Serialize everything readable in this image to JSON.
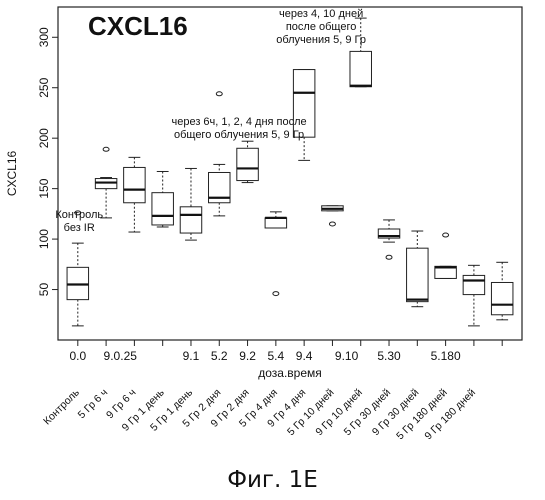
{
  "caption": "Фиг. 1E",
  "chart_data": {
    "type": "boxplot",
    "title": "CXCL16",
    "ylabel": "CXCL16",
    "xlabel": "доза.время",
    "ylim": [
      0,
      330
    ],
    "yticks": [
      50,
      100,
      150,
      200,
      250,
      300
    ],
    "grid": false,
    "group_labels": [
      {
        "text": "0.0",
        "position": 1
      },
      {
        "text": "9.0.25",
        "position": 2.5
      },
      {
        "text": "9.1",
        "position": 5
      },
      {
        "text": "5.2",
        "position": 6
      },
      {
        "text": "9.2",
        "position": 7
      },
      {
        "text": "5.4",
        "position": 8
      },
      {
        "text": "9.4",
        "position": 9
      },
      {
        "text": "9.10",
        "position": 10.5
      },
      {
        "text": "5.30",
        "position": 12
      },
      {
        "text": "5.180",
        "position": 14
      }
    ],
    "categories": [
      "Контроль",
      "5 Гр 6 ч",
      "9 Гр 6 ч",
      "9 Гр 1 день",
      "5 Гр 1 день",
      "5 Гр 2 дня",
      "9 Гр 2 дня",
      "5 Гр 4 дня",
      "9 Гр 4 дня",
      "5 Гр 10 дней",
      "9 Гр 10 дней",
      "5 Гр 30 дней",
      "9 Гр 30 дней",
      "5 Гр 180 дней",
      "9 Гр 180 дней"
    ],
    "boxes": [
      {
        "min": 14,
        "q1": 40,
        "median": 55,
        "q3": 72,
        "max": 96,
        "outliers": [
          126
        ]
      },
      {
        "min": 121,
        "q1": 150,
        "median": 156,
        "q3": 160,
        "max": 161,
        "outliers": [
          189
        ]
      },
      {
        "min": 107,
        "q1": 136,
        "median": 149,
        "q3": 171,
        "max": 181,
        "outliers": []
      },
      {
        "min": 112,
        "q1": 114,
        "median": 123,
        "q3": 146,
        "max": 167,
        "outliers": []
      },
      {
        "min": 99,
        "q1": 106,
        "median": 124,
        "q3": 132,
        "max": 170,
        "outliers": []
      },
      {
        "min": 123,
        "q1": 136,
        "median": 141,
        "q3": 166,
        "max": 174,
        "outliers": [
          244
        ]
      },
      {
        "min": 156,
        "q1": 158,
        "median": 170,
        "q3": 190,
        "max": 197,
        "outliers": []
      },
      {
        "min": 111,
        "q1": 111,
        "median": 121,
        "q3": 121,
        "max": 127,
        "outliers": [
          46
        ]
      },
      {
        "min": 178,
        "q1": 201,
        "median": 245,
        "q3": 268,
        "max": 268,
        "outliers": []
      },
      {
        "min": 128,
        "q1": 128,
        "median": 130,
        "q3": 133,
        "max": 133,
        "outliers": [
          115
        ]
      },
      {
        "min": 251,
        "q1": 251,
        "median": 252,
        "q3": 286,
        "max": 319,
        "outliers": []
      },
      {
        "min": 97,
        "q1": 101,
        "median": 103,
        "q3": 110,
        "max": 119,
        "outliers": [
          82
        ]
      },
      {
        "min": 33,
        "q1": 38,
        "median": 40,
        "q3": 91,
        "max": 108,
        "outliers": []
      },
      {
        "min": 61,
        "q1": 61,
        "median": 72,
        "q3": 73,
        "max": 73,
        "outliers": [
          104
        ]
      },
      {
        "min": 14,
        "q1": 45,
        "median": 59,
        "q3": 64,
        "max": 74,
        "outliers": []
      },
      {
        "min": 20,
        "q1": 25,
        "median": 35,
        "q3": 57,
        "max": 77,
        "outliers": []
      }
    ],
    "annotations": [
      {
        "lines": [
          "Контроль",
          "без IR"
        ],
        "x": 1.05,
        "y": 121
      },
      {
        "lines": [
          "через 6ч, 1, 2, 4 дня после",
          "общего облучения 5, 9 Гр"
        ],
        "x": 6.7,
        "y": 213
      },
      {
        "lines": [
          "через 4, 10 дней",
          "после общего",
          "облучения 5, 9 Гр"
        ],
        "x": 9.6,
        "y": 320
      }
    ]
  }
}
